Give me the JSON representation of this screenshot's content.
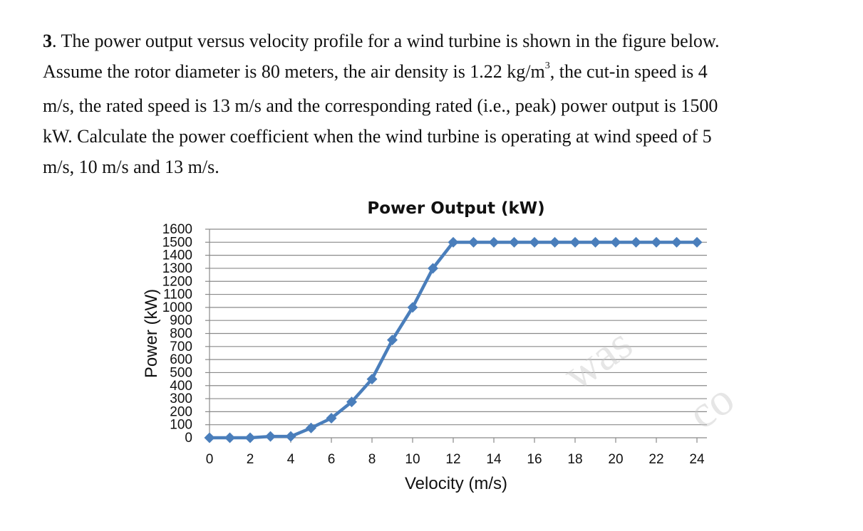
{
  "question": {
    "number": "3",
    "line1": ". The power output versus velocity profile for a wind turbine is shown in the figure below.",
    "line2_pre": "Assume the rotor diameter is 80 meters, the air density is 1.22 kg/m",
    "line2_sup": "3",
    "line2_post": ", the cut-in speed is 4",
    "line3": "m/s, the rated speed is 13 m/s and the corresponding rated (i.e., peak) power output is 1500",
    "line4": "kW. Calculate the power coefficient when the wind turbine is operating at wind speed of 5",
    "line5": "m/s, 10 m/s and 13 m/s."
  },
  "watermark": {
    "text1": "was",
    "text2": "co"
  },
  "chart_data": {
    "type": "line",
    "title": "Power Output (kW)",
    "xlabel": "Velocity (m/s)",
    "ylabel": "Power (kW)",
    "xlim": [
      0,
      24
    ],
    "ylim": [
      0,
      1600
    ],
    "xticks": [
      0,
      2,
      4,
      6,
      8,
      10,
      12,
      14,
      16,
      18,
      20,
      22,
      24
    ],
    "yticks": [
      0,
      100,
      200,
      300,
      400,
      500,
      600,
      700,
      800,
      900,
      1000,
      1100,
      1200,
      1300,
      1400,
      1500,
      1600
    ],
    "grid": true,
    "color": "#4a7ebb",
    "series": [
      {
        "x": [
          0,
          1,
          2,
          3,
          4,
          5,
          6,
          7,
          8,
          9,
          10,
          11,
          12,
          13,
          14,
          15,
          16,
          17,
          18,
          19,
          20,
          21,
          22,
          23,
          24
        ],
        "values": [
          0,
          0,
          0,
          10,
          10,
          75,
          150,
          275,
          450,
          750,
          1000,
          1300,
          1500,
          1500,
          1500,
          1500,
          1500,
          1500,
          1500,
          1500,
          1500,
          1500,
          1500,
          1500,
          1500
        ]
      }
    ]
  }
}
